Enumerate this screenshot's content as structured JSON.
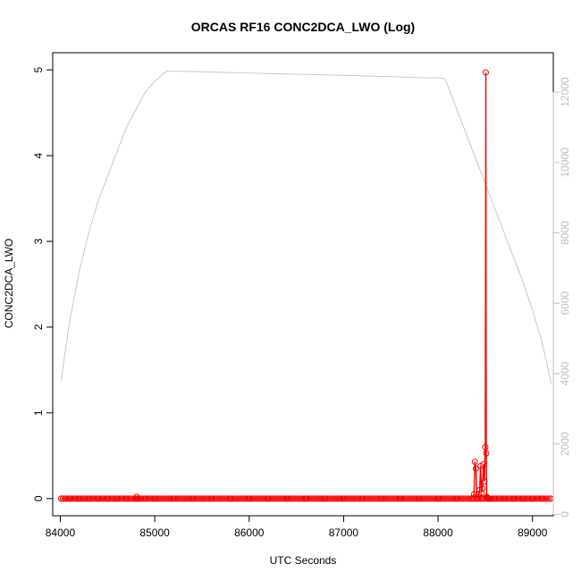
{
  "chart_data": {
    "type": "line",
    "title": "ORCAS RF16 CONC2DCA_LWO (Log)",
    "xlabel": "UTC Seconds",
    "ylabel": "CONC2DCA_LWO",
    "xlim": [
      83920,
      89220
    ],
    "ylim": [
      -0.2,
      5.2
    ],
    "y2lim": [
      -40,
      13120
    ],
    "xticks": [
      84000,
      85000,
      86000,
      87000,
      88000,
      89000
    ],
    "yticks": [
      0,
      1,
      2,
      3,
      4,
      5
    ],
    "y2ticks": [
      0,
      2000,
      4000,
      6000,
      8000,
      10000,
      12000
    ],
    "grid": false,
    "legend": "none",
    "colors": {
      "primary": "#ff0000",
      "secondary": "#c8c8c8",
      "axis": "#000000",
      "secondary_axis": "#bdbdbd"
    },
    "series": [
      {
        "axis": "right",
        "style": "line",
        "x": [
          84010,
          84040,
          84100,
          84200,
          84300,
          84400,
          84500,
          84600,
          84700,
          84800,
          84900,
          85000,
          85080,
          85130,
          85160,
          85500,
          86000,
          86500,
          87000,
          87500,
          87900,
          88000,
          88070,
          88100,
          88200,
          88300,
          88400,
          88500,
          88600,
          88700,
          88800,
          88900,
          89000,
          89100,
          89200
        ],
        "values": [
          3800,
          4400,
          5500,
          6900,
          8000,
          8900,
          9600,
          10300,
          11000,
          11500,
          12000,
          12300,
          12500,
          12600,
          12600,
          12580,
          12540,
          12510,
          12480,
          12440,
          12400,
          12410,
          12380,
          12200,
          11500,
          10800,
          10100,
          9400,
          8700,
          8000,
          7300,
          6600,
          5800,
          4900,
          3700
        ]
      },
      {
        "axis": "left",
        "style": "line+points",
        "x": [
          84010,
          84100,
          84200,
          84300,
          84400,
          84500,
          84600,
          84700,
          84800,
          84810,
          84820,
          84900,
          85000,
          85200,
          85400,
          85600,
          85800,
          86000,
          86200,
          86400,
          86600,
          86800,
          87000,
          87200,
          87400,
          87600,
          87800,
          88000,
          88200,
          88350,
          88380,
          88390,
          88400,
          88410,
          88420,
          88430,
          88440,
          88450,
          88460,
          88470,
          88480,
          88490,
          88500,
          88505,
          88510,
          88515,
          88520,
          88525,
          88530,
          88540,
          88560,
          88600,
          88700,
          88800,
          88900,
          89000,
          89100,
          89190
        ],
        "values": [
          0,
          0,
          0,
          0,
          0,
          0,
          0,
          0,
          0,
          0.02,
          0,
          0,
          0,
          0,
          0,
          0,
          0,
          0,
          0,
          0,
          0,
          0,
          0,
          0,
          0,
          0,
          0,
          0,
          0,
          0,
          0.05,
          0.43,
          0.35,
          0.02,
          0,
          0.05,
          0.1,
          0.38,
          0.07,
          0.12,
          0.4,
          0.2,
          0.6,
          4.97,
          0.53,
          0.02,
          0.01,
          0,
          0,
          0,
          0,
          0,
          0,
          0,
          0,
          0,
          0,
          0
        ]
      }
    ]
  }
}
